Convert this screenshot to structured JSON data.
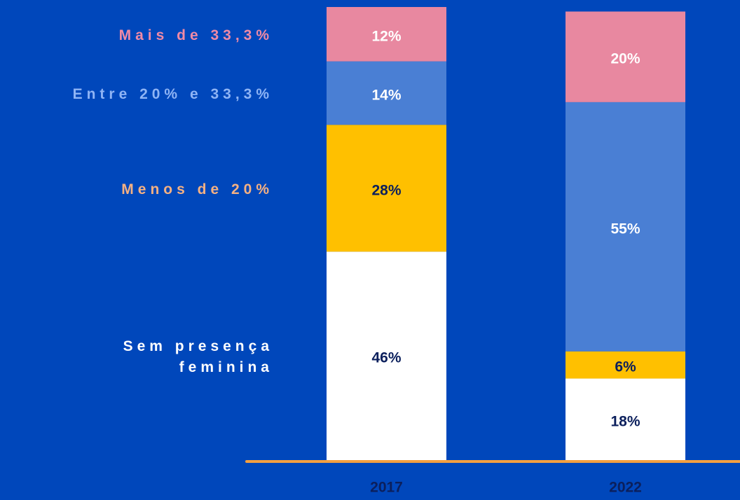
{
  "chart_data": {
    "type": "stacked_bar",
    "categories": [
      "2017",
      "2022"
    ],
    "series": [
      {
        "name": "Sem presença feminina",
        "color": "#ffffff",
        "label_color": "#0b1f5c",
        "legend_color": "#ffffff",
        "values": [
          46,
          18
        ],
        "value_labels": [
          "46%",
          "18%"
        ]
      },
      {
        "name": "Menos de 20%",
        "color": "#ffc000",
        "label_color": "#0b1f5c",
        "legend_color": "#f4b183",
        "values": [
          28,
          6
        ],
        "value_labels": [
          "28%",
          "6%"
        ]
      },
      {
        "name": "Entre 20% e 33,3%",
        "color": "#4a7fd4",
        "label_color": "#ffffff",
        "legend_color": "#8fb4f5",
        "values": [
          14,
          55
        ],
        "value_labels": [
          "14%",
          "55%"
        ]
      },
      {
        "name": "Mais de 33,3%",
        "color": "#e888a0",
        "label_color": "#ffffff",
        "legend_color": "#ef8aa6",
        "values": [
          12,
          20
        ],
        "value_labels": [
          "12%",
          "20%"
        ]
      }
    ],
    "ylim": [
      0,
      100
    ],
    "axis_color": "#f4a040"
  }
}
